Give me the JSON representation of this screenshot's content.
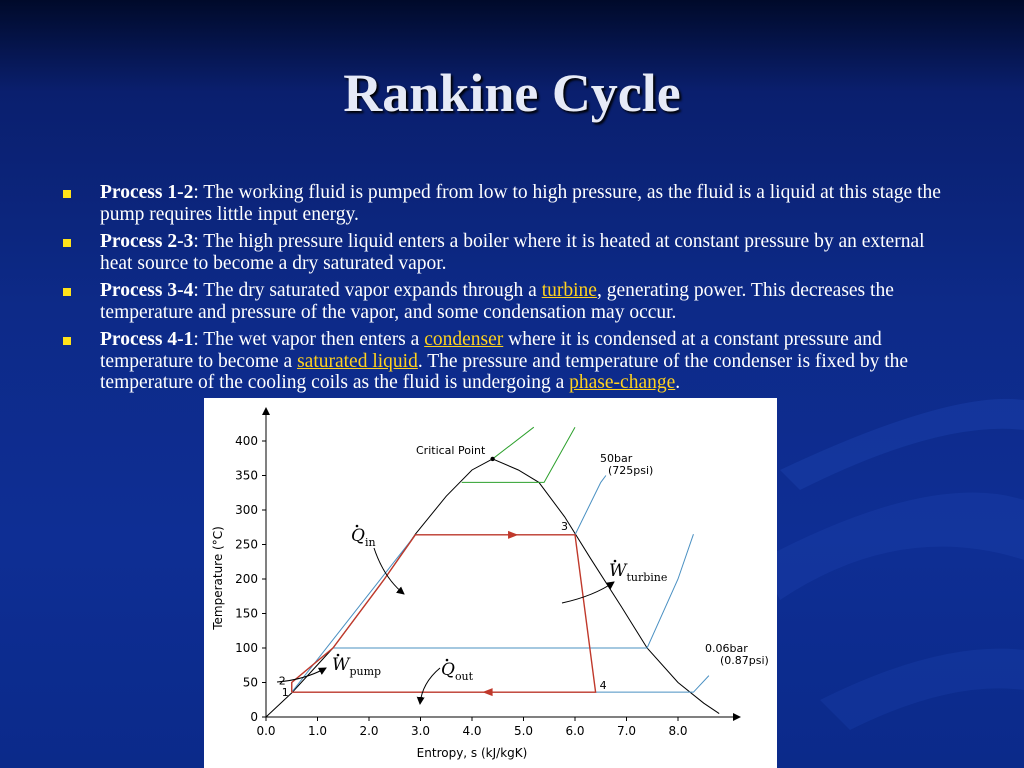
{
  "slide": {
    "title": "Rankine Cycle"
  },
  "bullets": [
    {
      "label": "Process 1-2",
      "parts": [
        {
          "text": ": The working fluid is pumped from low to high pressure, as the fluid is a liquid at this stage the pump requires little input energy."
        }
      ]
    },
    {
      "label": "Process 2-3",
      "parts": [
        {
          "text": ": The high pressure liquid enters a boiler where it is heated at constant pressure by an external heat source to become a dry saturated vapor."
        }
      ]
    },
    {
      "label": "Process 3-4",
      "parts": [
        {
          "text": ": The dry saturated vapor expands through a "
        },
        {
          "text": "turbine",
          "link": true
        },
        {
          "text": ", generating power. This decreases the temperature and pressure of the vapor, and some condensation may occur."
        }
      ]
    },
    {
      "label": "Process 4-1",
      "parts": [
        {
          "text": ": The wet vapor then enters a "
        },
        {
          "text": "condenser",
          "link": true
        },
        {
          "text": " where it is condensed at a constant pressure and temperature to become a "
        },
        {
          "text": "saturated liquid",
          "link": true
        },
        {
          "text": ". The pressure and temperature of the condenser is fixed by the temperature of the cooling coils as the fluid is undergoing a "
        },
        {
          "text": "phase-change",
          "link": true
        },
        {
          "text": "."
        }
      ]
    }
  ],
  "chart_data": {
    "type": "line",
    "title": "",
    "xlabel": "Entropy, s  (kJ/kgK)",
    "ylabel": "Temperature (°C)",
    "xlim": [
      0,
      9
    ],
    "ylim": [
      0,
      420
    ],
    "x_ticks": [
      "0.0",
      "1.0",
      "2.0",
      "3.0",
      "4.0",
      "5.0",
      "6.0",
      "7.0",
      "8.0"
    ],
    "y_ticks": [
      "0",
      "50",
      "100",
      "150",
      "200",
      "250",
      "300",
      "350",
      "400"
    ],
    "saturation_dome": [
      [
        0.0,
        0
      ],
      [
        0.5,
        35
      ],
      [
        1.3,
        100
      ],
      [
        2.3,
        200
      ],
      [
        2.9,
        265
      ],
      [
        3.5,
        320
      ],
      [
        4.0,
        358
      ],
      [
        4.4,
        374
      ],
      [
        4.9,
        358
      ],
      [
        5.3,
        340
      ],
      [
        5.8,
        290
      ],
      [
        6.3,
        230
      ],
      [
        6.9,
        160
      ],
      [
        7.4,
        100
      ],
      [
        8.0,
        50
      ],
      [
        8.5,
        20
      ],
      [
        8.8,
        5
      ]
    ],
    "critical_point": [
      4.4,
      374
    ],
    "isobars": [
      {
        "label": "50bar\n(725psi)",
        "color": "#4a90c2",
        "points": [
          [
            0.5,
            36
          ],
          [
            2.9,
            264
          ],
          [
            6.0,
            264
          ],
          [
            6.5,
            340
          ],
          [
            6.6,
            350
          ]
        ]
      },
      {
        "label": "0.06bar\n(0.87psi)",
        "color": "#4a90c2",
        "points": [
          [
            0.5,
            36
          ],
          [
            8.3,
            36
          ],
          [
            8.6,
            60
          ]
        ]
      },
      {
        "label": "",
        "color": "#4a90c2",
        "points": [
          [
            1.3,
            100
          ],
          [
            7.4,
            100
          ],
          [
            8.0,
            200
          ],
          [
            8.3,
            265
          ]
        ]
      },
      {
        "label": "",
        "color": "#2ca02c",
        "points": [
          [
            3.8,
            340
          ],
          [
            5.4,
            340
          ],
          [
            6.0,
            420
          ]
        ]
      },
      {
        "label": "",
        "color": "#2ca02c",
        "points": [
          [
            4.4,
            374
          ],
          [
            5.2,
            420
          ]
        ]
      }
    ],
    "cycle_points": [
      {
        "label": "1",
        "s": 0.5,
        "T": 36
      },
      {
        "label": "2",
        "s": 0.5,
        "T": 50
      },
      {
        "label": "3",
        "s": 6.0,
        "T": 264
      },
      {
        "label": "4",
        "s": 6.4,
        "T": 36
      }
    ],
    "annotations": [
      {
        "text": "Critical Point"
      },
      {
        "text": "50bar"
      },
      {
        "text": "(725psi)"
      },
      {
        "text": "0.06bar"
      },
      {
        "text": "(0.87psi)"
      },
      {
        "text": "Q",
        "subscript": "in"
      },
      {
        "text": "W",
        "subscript": "turbine"
      },
      {
        "text": "W",
        "subscript": "pump"
      },
      {
        "text": "Q",
        "subscript": "out"
      }
    ]
  }
}
